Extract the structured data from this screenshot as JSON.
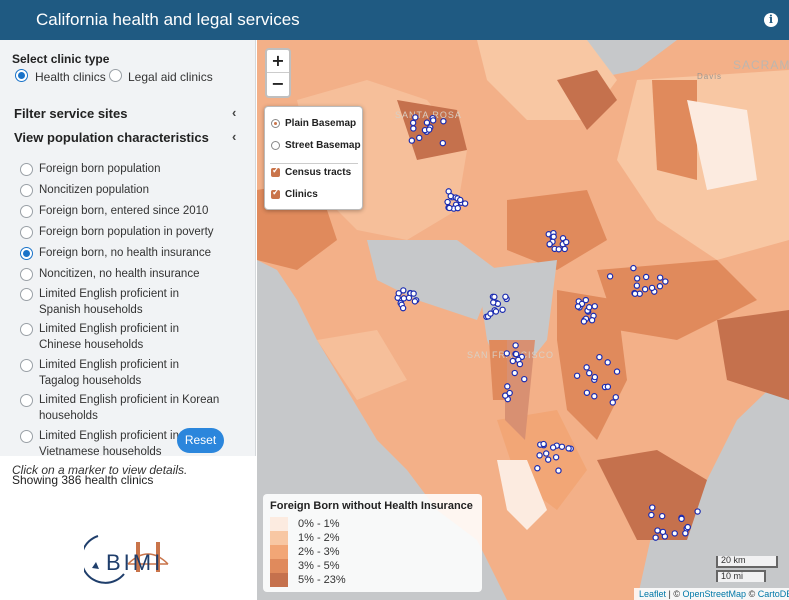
{
  "header": {
    "title": "California health and legal services",
    "info_icon": "info-icon"
  },
  "sidebar": {
    "clinic_type_label": "Select clinic type",
    "clinic_options": [
      {
        "label": "Health clinics",
        "selected": true
      },
      {
        "label": "Legal aid clinics",
        "selected": false
      }
    ],
    "filter_section": "Filter service sites",
    "population_section": "View population characteristics",
    "population_options": [
      {
        "label": "Foreign born population",
        "selected": false
      },
      {
        "label": "Noncitizen population",
        "selected": false
      },
      {
        "label": "Foreign born, entered since 2010",
        "selected": false
      },
      {
        "label": "Foreign born population in poverty",
        "selected": false
      },
      {
        "label": "Foreign born, no health insurance",
        "selected": true
      },
      {
        "label": "Noncitizen, no health insurance",
        "selected": false
      },
      {
        "label": "Limited English proficient in Spanish households",
        "selected": false
      },
      {
        "label": "Limited English proficient in Chinese households",
        "selected": false
      },
      {
        "label": "Limited English proficient in Tagalog households",
        "selected": false
      },
      {
        "label": "Limited English proficient in Korean households",
        "selected": false
      },
      {
        "label": "Limited English proficient in Vietnamese households",
        "selected": false
      }
    ],
    "showing_text": "Showing 386 health clinics",
    "reset_label": "Reset",
    "hint": "Click on a marker to view details.",
    "logo_text": "BIMI"
  },
  "map": {
    "zoom_in": "+",
    "zoom_out": "−",
    "layers": {
      "basemaps": [
        {
          "label": "Plain Basemap",
          "selected": true
        },
        {
          "label": "Street Basemap",
          "selected": false
        }
      ],
      "overlays": [
        {
          "label": "Census tracts",
          "checked": true
        },
        {
          "label": "Clinics",
          "checked": true
        }
      ]
    },
    "legend": {
      "title": "Foreign Born without Health Insurance",
      "items": [
        {
          "label": "0% - 1%",
          "color": "#fcebe0"
        },
        {
          "label": "1% - 2%",
          "color": "#f8c7a3"
        },
        {
          "label": "2% - 3%",
          "color": "#f2a676"
        },
        {
          "label": "3% - 5%",
          "color": "#e08a5c"
        },
        {
          "label": "5% - 23%",
          "color": "#c5714d"
        }
      ]
    },
    "scale": {
      "km": "20 km",
      "mi": "10 mi"
    },
    "attribution": {
      "leaflet": "Leaflet",
      "sep1": " | © ",
      "osm": "OpenStreetMap",
      "sep2": " © ",
      "carto": "CartoDB"
    },
    "city_labels": [
      "SACRAM",
      "Davis",
      "SANTA ROSA",
      "SAN FRANCISCO"
    ]
  },
  "colors": {
    "header": "#1f5a82",
    "accent": "#2b86dc",
    "clinic_marker": "#1a2bb0",
    "water": "#c6c8ca"
  }
}
